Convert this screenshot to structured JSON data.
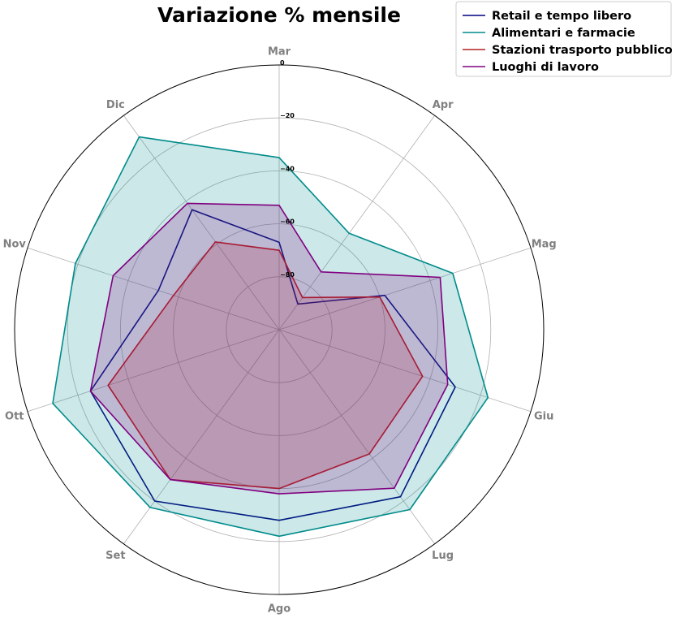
{
  "chart_data": {
    "type": "radar",
    "title": "Variazione % mensile",
    "categories": [
      "Mar",
      "Apr",
      "Mag",
      "Giu",
      "Lug",
      "Ago",
      "Set",
      "Ott",
      "Nov",
      "Dic"
    ],
    "rlim": [
      -100,
      0
    ],
    "r_ticks": [
      0,
      -20,
      -40,
      -60,
      -80
    ],
    "r_tick_labels": [
      "0",
      "−20",
      "−40",
      "−60",
      "−80"
    ],
    "grid": true,
    "legend_position": "top-right",
    "series": [
      {
        "name": "Retail e tempo libero",
        "color": "#000080",
        "fill": false,
        "values": [
          -67,
          -88,
          -58,
          -30,
          -22,
          -28,
          -20,
          -25,
          -52,
          -44
        ]
      },
      {
        "name": "Alimentari e farmacie",
        "color": "#008b8b",
        "fill": true,
        "values": [
          -35,
          -55,
          -31,
          -17,
          -16,
          -22,
          -17,
          -10,
          -19,
          -10
        ]
      },
      {
        "name": "Stazioni trasporto pubblico",
        "color": "#b22222",
        "fill": true,
        "values": [
          -70,
          -85,
          -60,
          -43,
          -42,
          -40,
          -30,
          -32,
          -58,
          -59
        ]
      },
      {
        "name": "Luoghi di lavoro",
        "color": "#800080",
        "fill": true,
        "values": [
          -53,
          -73,
          -36,
          -33,
          -26,
          -38,
          -30,
          -25,
          -34,
          -41
        ]
      }
    ]
  }
}
